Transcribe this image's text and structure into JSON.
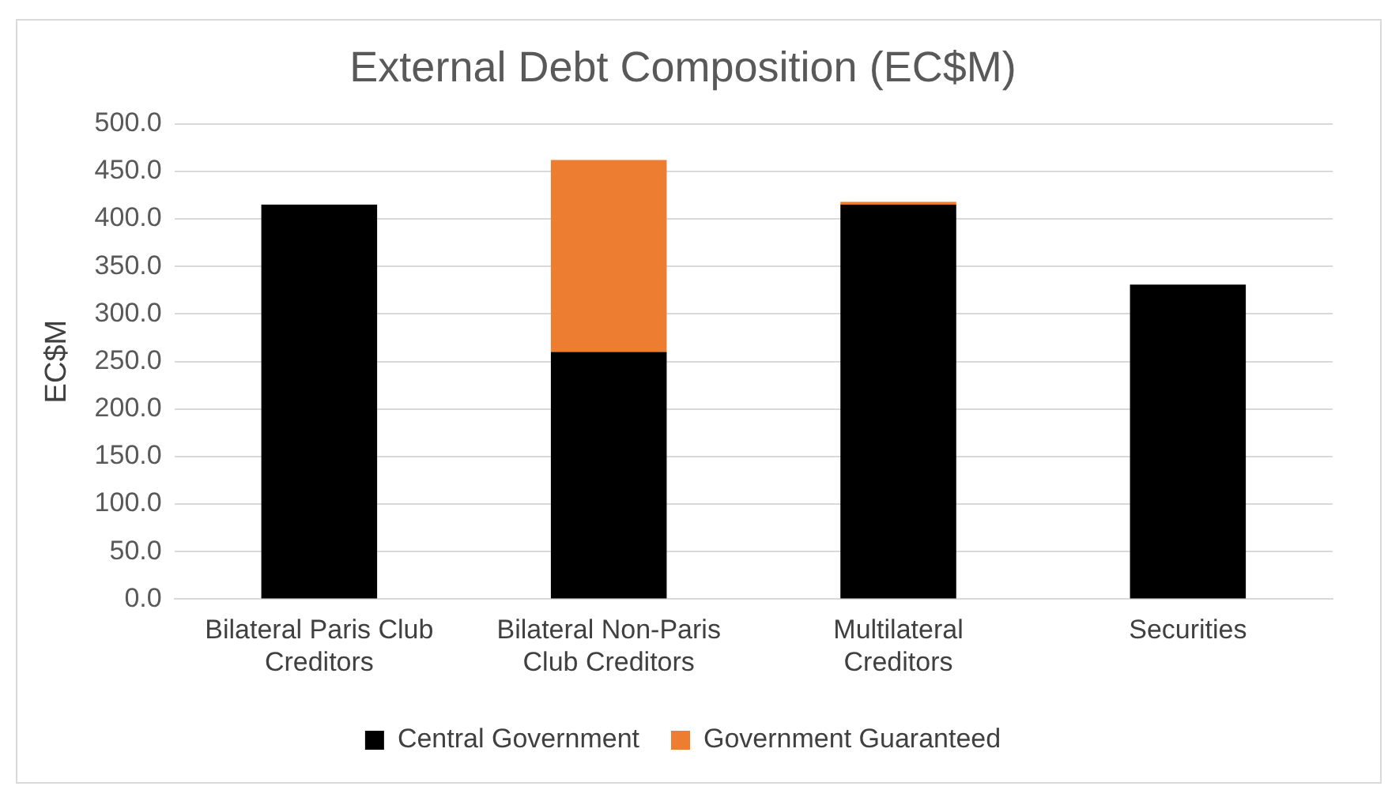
{
  "chart_data": {
    "type": "bar",
    "title": "External Debt Composition (EC$M)",
    "ylabel": "EC$M",
    "categories": [
      "Bilateral Paris Club Creditors",
      "Bilateral Non-Paris Club Creditors",
      "Multilateral Creditors",
      "Securities"
    ],
    "series": [
      {
        "name": "Central Government",
        "color": "#000000",
        "values": [
          415,
          260,
          415,
          331
        ]
      },
      {
        "name": "Government Guaranteed",
        "color": "#ed7d31",
        "values": [
          0,
          202,
          3,
          0
        ]
      }
    ],
    "stacked": true,
    "ylim": [
      0,
      500
    ],
    "yticks": [
      {
        "value": 0,
        "label": "0.0"
      },
      {
        "value": 50,
        "label": "50.0"
      },
      {
        "value": 100,
        "label": "100.0"
      },
      {
        "value": 150,
        "label": "150.0"
      },
      {
        "value": 200,
        "label": "200.0"
      },
      {
        "value": 250,
        "label": "250.0"
      },
      {
        "value": 300,
        "label": "300.0"
      },
      {
        "value": 350,
        "label": "350.0"
      },
      {
        "value": 400,
        "label": "400.0"
      },
      {
        "value": 450,
        "label": "450.0"
      },
      {
        "value": 500,
        "label": "500.0"
      }
    ],
    "grid": "y",
    "legend": "bottom"
  }
}
